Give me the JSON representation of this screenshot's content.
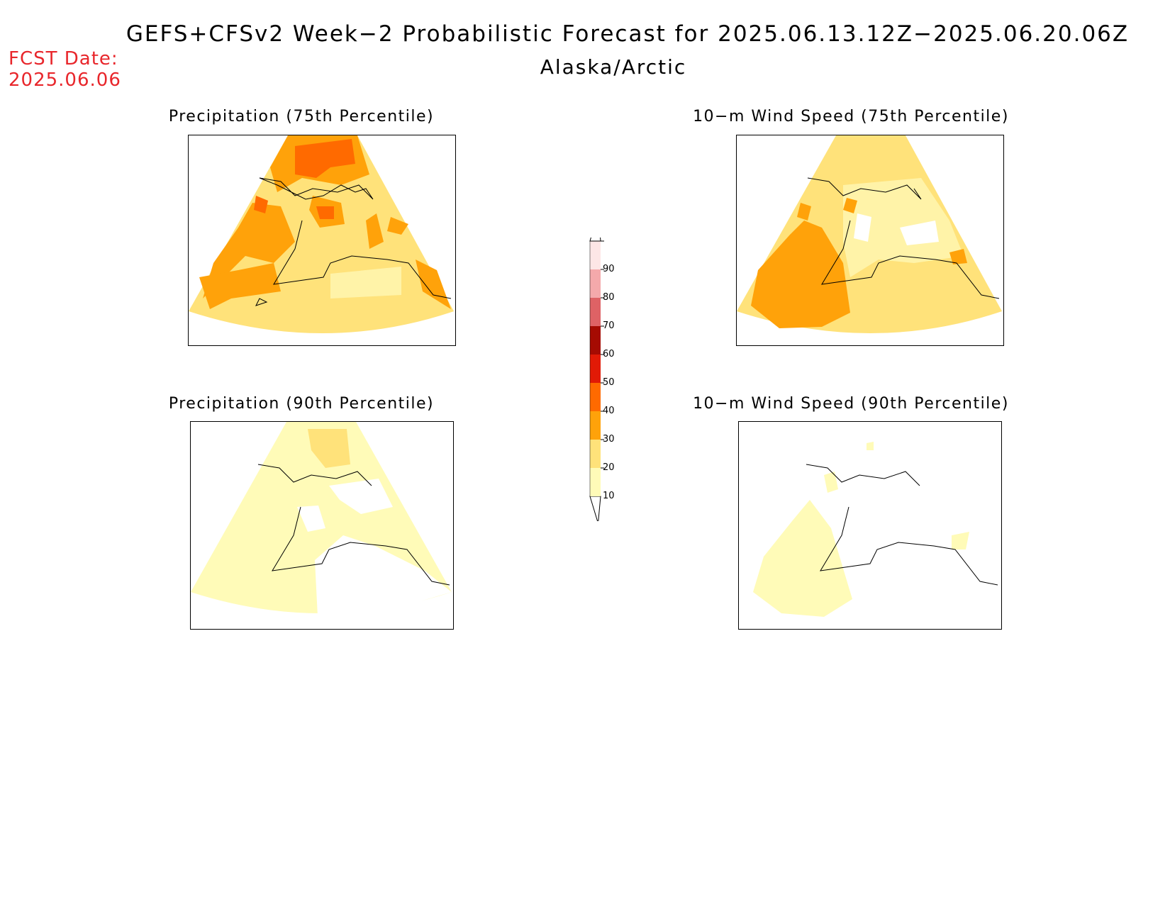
{
  "title": "GEFS+CFSv2 Week−2 Probabilistic Forecast for 2025.06.13.12Z−2025.06.20.06Z",
  "subtitle": "Alaska/Arctic",
  "fcst_date_label": "FCST Date:",
  "fcst_date_value": "2025.06.06",
  "panels": [
    {
      "title": "Precipitation (75th Percentile)"
    },
    {
      "title": "10−m Wind Speed (75th Percentile)"
    },
    {
      "title": "Precipitation (90th Percentile)"
    },
    {
      "title": "10−m Wind Speed (90th Percentile)"
    }
  ],
  "legend": {
    "levels": [
      "10",
      "20",
      "30",
      "40",
      "50",
      "60",
      "70",
      "80",
      "90"
    ],
    "colors": [
      "#fffbb8",
      "#ffe27a",
      "#ffa20a",
      "#ff6a00",
      "#e11a06",
      "#a50b02",
      "#de6265",
      "#f4a9ab",
      "#fde6e6"
    ]
  }
}
